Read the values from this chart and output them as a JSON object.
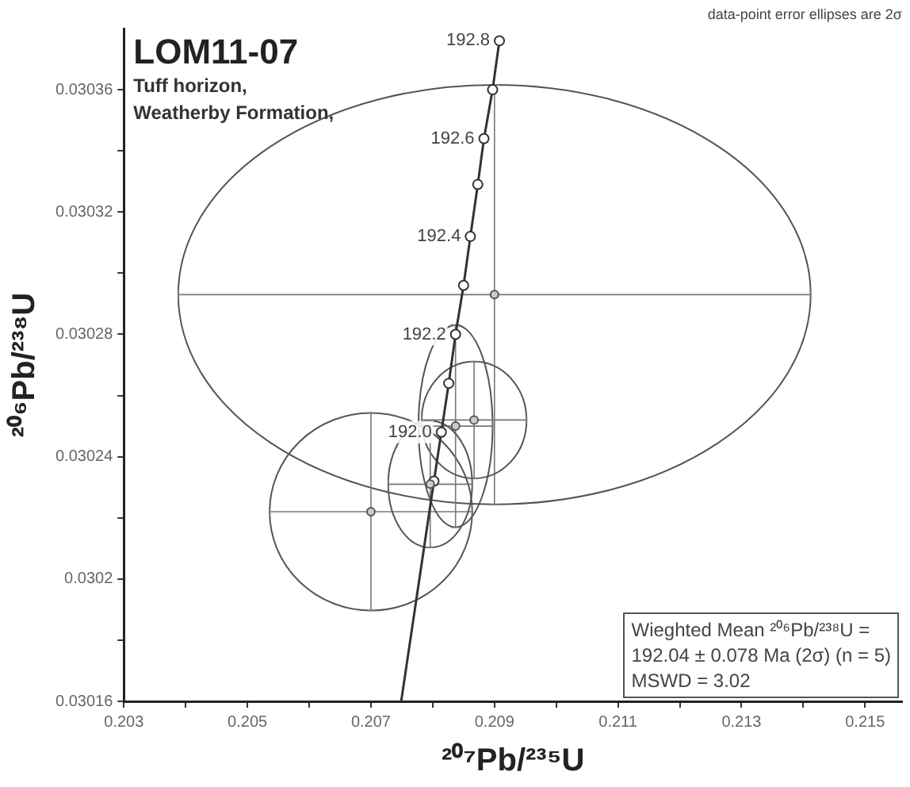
{
  "chart_data": {
    "type": "scatter",
    "title": "LOM11-07",
    "subtitle": "Tuff horizon,\nWeatherby Formation,",
    "xlabel": "²⁰⁷Pb/²³⁵U",
    "ylabel": "²⁰⁶Pb/²³⁸U",
    "xlim": [
      0.203,
      0.2156
    ],
    "ylim": [
      0.03016,
      0.03038
    ],
    "xticks": [
      0.203,
      {
        "value": 0.204,
        "label": null
      },
      0.205,
      {
        "value": 0.206,
        "label": null
      },
      0.207,
      {
        "value": 0.208,
        "label": null
      },
      0.209,
      {
        "value": 0.21,
        "label": null
      },
      0.211,
      {
        "value": 0.212,
        "label": null
      },
      0.213,
      {
        "value": 0.214,
        "label": null
      },
      0.215
    ],
    "yticks": [
      0.03016,
      {
        "value": 0.03018,
        "label": null
      },
      0.0302,
      {
        "value": 0.03022,
        "label": null
      },
      0.03024,
      {
        "value": 0.03026,
        "label": null
      },
      0.03028,
      {
        "value": 0.0303,
        "label": null
      },
      0.03032,
      {
        "value": 0.03034,
        "label": null
      },
      0.03036
    ],
    "grid": false,
    "legend": false,
    "marker": "circle",
    "series": [
      {
        "type": "scatter",
        "color": "#c9cccc",
        "x": [
          0.209,
          0.207,
          0.20837,
          0.20867,
          0.20796
        ],
        "values": [
          0.030293,
          0.030222,
          0.03025,
          0.030252,
          0.030231
        ],
        "xerrors": [
          0.00512,
          0.00164,
          0.0006,
          0.00085,
          0.00068
        ],
        "errors": [
          6.86e-05,
          3.23e-05,
          3.31e-05,
          1.91e-05,
          2.07e-05
        ]
      },
      {
        "type": "line",
        "color": "#333333",
        "x": [
          0.20908,
          0.20897,
          0.20883,
          0.20873,
          0.20861,
          0.2085,
          0.20837,
          0.20826,
          0.20814,
          0.20802
        ],
        "values": [
          0.030376,
          0.03036,
          0.030344,
          0.030329,
          0.030312,
          0.030296,
          0.03028,
          0.030264,
          0.030248,
          0.030232
        ]
      },
      {
        "type": "line",
        "color": "#333333",
        "marker": "none",
        "x": [
          0.20802,
          0.20749
        ],
        "values": [
          0.030232,
          0.03016
        ]
      }
    ],
    "annotations": [
      "data-point error ellipses are 2σ",
      "Wieghted Mean ²⁰⁶Pb/²³⁸U =\n192.04 ± 0.078 Ma (2σ) (n = 5)\nMSWD = 3.02",
      {
        "text": "192.8",
        "x": 0.20908,
        "y": 0.030376
      },
      {
        "text": "192.6",
        "x": 0.20883,
        "y": 0.030344
      },
      {
        "text": "192.4",
        "x": 0.20861,
        "y": 0.030312
      },
      {
        "text": "192.2",
        "x": 0.20837,
        "y": 0.03028
      },
      {
        "text": "192.0",
        "x": 0.20814,
        "y": 0.030248
      }
    ]
  }
}
